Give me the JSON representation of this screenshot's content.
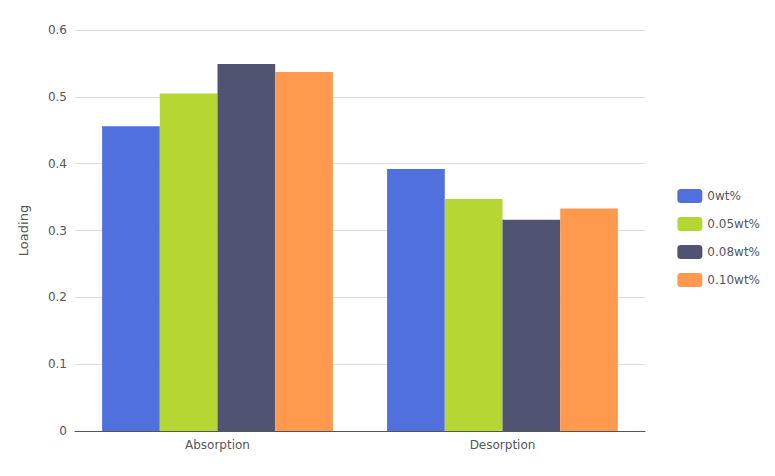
{
  "chart_data": {
    "type": "bar",
    "categories": [
      "Absorption",
      "Desorption"
    ],
    "series": [
      {
        "name": "0wt%",
        "values": [
          0.456,
          0.392
        ]
      },
      {
        "name": "0.05wt%",
        "values": [
          0.505,
          0.347
        ]
      },
      {
        "name": "0.08wt%",
        "values": [
          0.549,
          0.316
        ]
      },
      {
        "name": "0.10wt%",
        "values": [
          0.537,
          0.333
        ]
      }
    ],
    "ylabel": "Loading",
    "ylim": [
      0,
      0.6
    ],
    "yticks": [
      0,
      0.1,
      0.2,
      0.3,
      0.4,
      0.5,
      0.6
    ],
    "grid": true,
    "legend": "right"
  }
}
